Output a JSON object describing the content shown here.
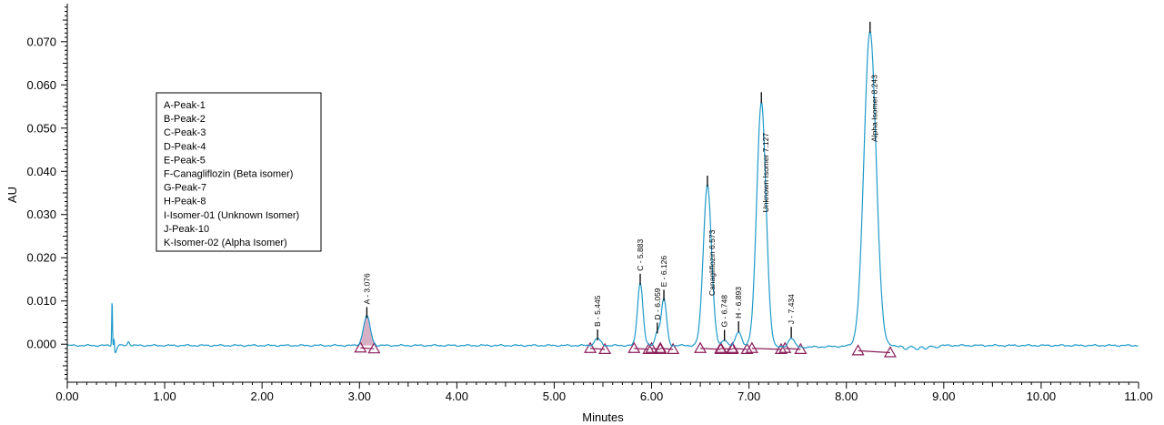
{
  "chart_data": {
    "type": "line",
    "xlabel": "Minutes",
    "ylabel": "AU",
    "xlim": [
      0,
      11
    ],
    "ylim": [
      -0.0088,
      0.0788
    ],
    "x_ticks": [
      0,
      1,
      2,
      3,
      4,
      5,
      6,
      7,
      8,
      9,
      10,
      11
    ],
    "x_tick_labels": [
      "0.00",
      "1.00",
      "2.00",
      "3.00",
      "4.00",
      "5.00",
      "6.00",
      "7.00",
      "8.00",
      "9.00",
      "10.00",
      "11.00"
    ],
    "y_ticks": [
      0,
      0.01,
      0.02,
      0.03,
      0.04,
      0.05,
      0.06,
      0.07
    ],
    "y_tick_labels": [
      "0.000",
      "0.010",
      "0.020",
      "0.030",
      "0.040",
      "0.050",
      "0.060",
      "0.070"
    ],
    "colors": {
      "trace": "#1f9ac9",
      "integration": "#8b1e5a",
      "axis": "#000000"
    },
    "injection_spike": {
      "rt": 0.46,
      "height": 0.0107
    },
    "baseline": -0.0003,
    "peaks": [
      {
        "id": "A",
        "label": "A - 3.076",
        "rt": 3.076,
        "height": 0.0068,
        "width": 0.035,
        "start": 3.01,
        "end": 3.15
      },
      {
        "id": "B",
        "label": "B - 5.445",
        "rt": 5.445,
        "height": 0.0016,
        "width": 0.03,
        "start": 5.37,
        "end": 5.52
      },
      {
        "id": "C",
        "label": "C - 5.883",
        "rt": 5.883,
        "height": 0.0145,
        "width": 0.028,
        "start": 5.82,
        "end": 5.97
      },
      {
        "id": "D",
        "label": "D - 6.059",
        "rt": 6.059,
        "height": 0.0032,
        "width": 0.022,
        "start": 6.0,
        "end": 6.09
      },
      {
        "id": "E",
        "label": "E - 6.126",
        "rt": 6.126,
        "height": 0.0108,
        "width": 0.027,
        "start": 6.09,
        "end": 6.22
      },
      {
        "id": "F",
        "label": "Canagliflozin 6.573",
        "rt": 6.573,
        "height": 0.0372,
        "width": 0.042,
        "start": 6.5,
        "end": 6.71
      },
      {
        "id": "G",
        "label": "G - 6.748",
        "rt": 6.748,
        "height": 0.0015,
        "width": 0.025,
        "start": 6.71,
        "end": 6.83
      },
      {
        "id": "H",
        "label": "H - 6.893",
        "rt": 6.893,
        "height": 0.0035,
        "width": 0.03,
        "start": 6.83,
        "end": 6.98
      },
      {
        "id": "I",
        "label": "Unknown Isomer 7.127",
        "rt": 7.127,
        "height": 0.0565,
        "width": 0.048,
        "start": 7.03,
        "end": 7.33
      },
      {
        "id": "J",
        "label": "J - 7.434",
        "rt": 7.434,
        "height": 0.0022,
        "width": 0.03,
        "start": 7.37,
        "end": 7.53
      },
      {
        "id": "K",
        "label": "Alpha Isomer 8.243",
        "rt": 8.243,
        "height": 0.0728,
        "width": 0.062,
        "start": 8.12,
        "end": 8.45
      }
    ],
    "legend": {
      "placement": "upper-left",
      "items": [
        "A-Peak-1",
        "B-Peak-2",
        "C-Peak-3",
        "D-Peak-4",
        "E-Peak-5",
        "F-Canagliflozin (Beta isomer)",
        "G-Peak-7",
        "H-Peak-8",
        "I-Isomer-01 (Unknown Isomer)",
        "J-Peak-10",
        "K-Isomer-02 (Alpha Isomer)"
      ]
    }
  }
}
